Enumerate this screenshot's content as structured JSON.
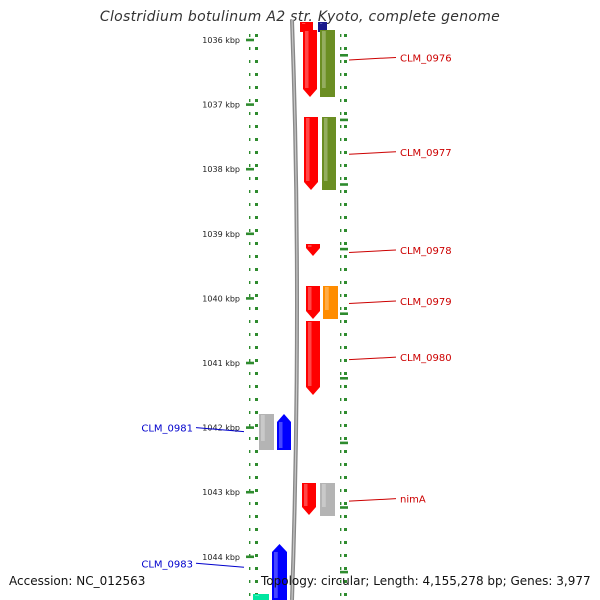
{
  "title": "Clostridium botulinum A2 str. Kyoto, complete genome",
  "accession": "Accession: NC_012563",
  "summary": "Topology: circular; Length: 4,155,278 bp; Genes: 3,977",
  "colors": {
    "tick": "#2e8b2e",
    "backbone": "#888888",
    "right_label": "#cc0000",
    "left_label": "#0000cc",
    "red_gene": "#ff0000",
    "olive_gene": "#6b8e23",
    "orange_gene": "#ff8c00",
    "gray_gene": "#b4b4b4",
    "blue_gene": "#0000ff",
    "teal_gene": "#00e6a0"
  },
  "scale": {
    "unit": "kbp",
    "ticks": [
      {
        "kbp": 1036,
        "label": "1036 kbp"
      },
      {
        "kbp": 1037,
        "label": "1037 kbp"
      },
      {
        "kbp": 1038,
        "label": "1038 kbp"
      },
      {
        "kbp": 1039,
        "label": "1039 kbp"
      },
      {
        "kbp": 1040,
        "label": "1040 kbp"
      },
      {
        "kbp": 1041,
        "label": "1041 kbp"
      },
      {
        "kbp": 1042,
        "label": "1042 kbp"
      },
      {
        "kbp": 1043,
        "label": "1043 kbp"
      },
      {
        "kbp": 1044,
        "label": "1044 kbp"
      }
    ]
  },
  "gene_labels": [
    {
      "name": "CLM_0976",
      "side": "right",
      "kbp": 1036.27
    },
    {
      "name": "CLM_0977",
      "side": "right",
      "kbp": 1037.73
    },
    {
      "name": "CLM_0978",
      "side": "right",
      "kbp": 1039.25
    },
    {
      "name": "CLM_0979",
      "side": "right",
      "kbp": 1040.04
    },
    {
      "name": "CLM_0980",
      "side": "right",
      "kbp": 1040.91
    },
    {
      "name": "CLM_0981",
      "side": "left",
      "kbp": 1042.0
    },
    {
      "name": "nimA",
      "side": "right",
      "kbp": 1043.1
    },
    {
      "name": "CLM_0983",
      "side": "left",
      "kbp": 1044.1
    }
  ]
}
